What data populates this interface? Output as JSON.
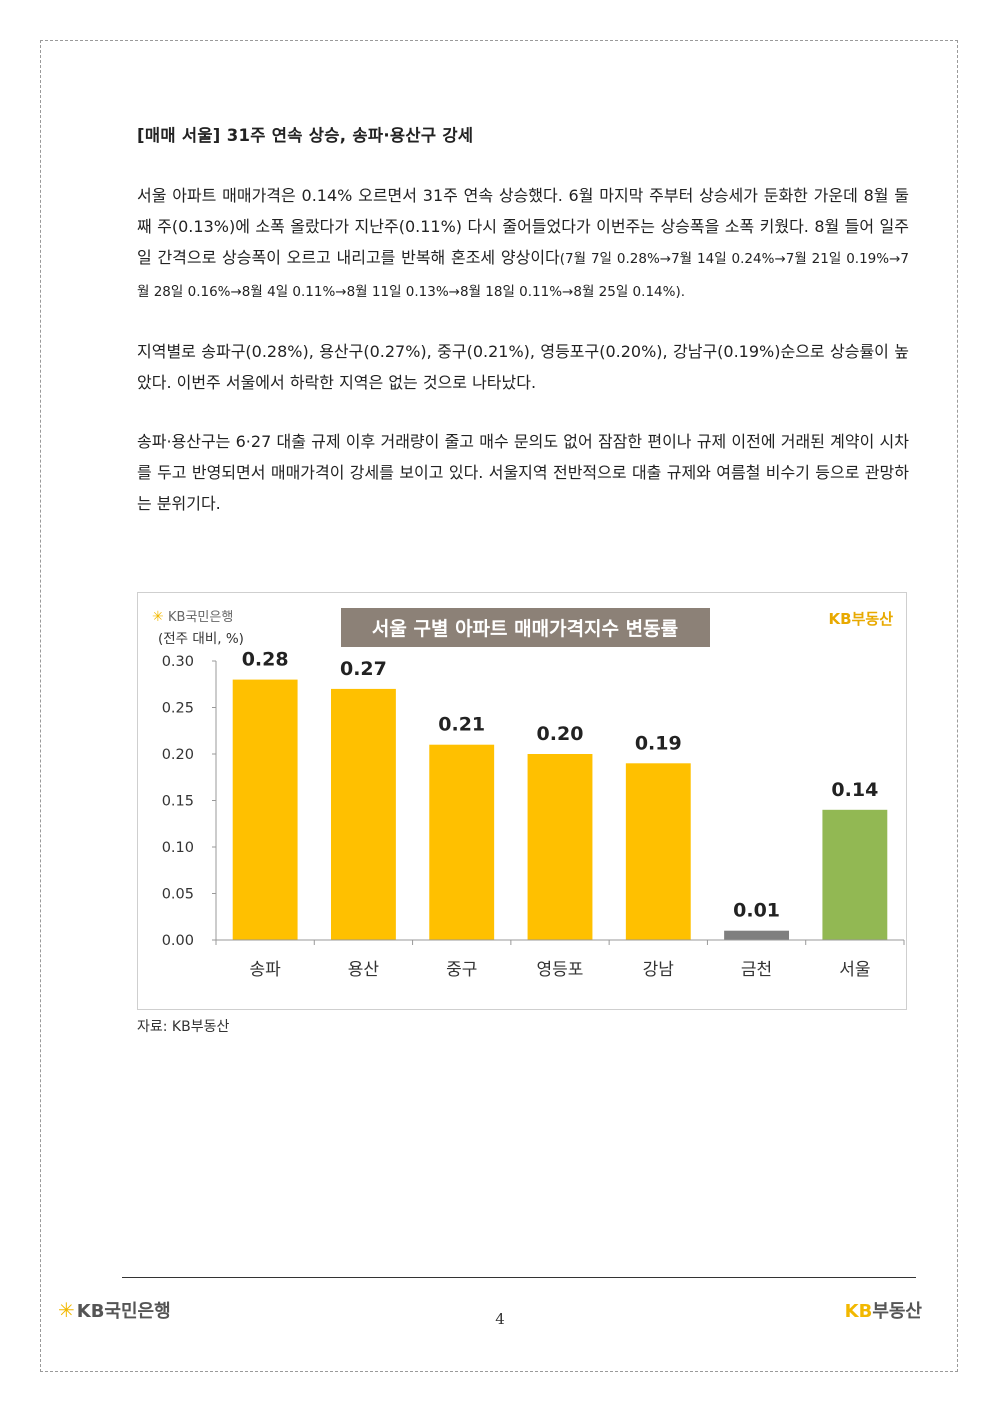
{
  "heading": "[매매 서울] 31주 연속 상승, 송파·용산구 강세",
  "paragraphs": {
    "p1_main": "서울 아파트 매매가격은 0.14% 오르면서 31주 연속 상승했다. 6월 마지막 주부터 상승세가 둔화한 가운데 8월 둘째 주(0.13%)에 소폭 올랐다가 지난주(0.11%) 다시 줄어들었다가 이번주는 상승폭을 소폭 키웠다. 8월 들어 일주일 간격으로 상승폭이 오르고 내리고를 반복해 혼조세 양상이다",
    "p1_detail": "(7월 7일 0.28%→7월 14일 0.24%→7월 21일 0.19%→7월 28일 0.16%→8월 4일 0.11%→8월 11일 0.13%→8월 18일 0.11%→8월 25일 0.14%).",
    "p2": "지역별로 송파구(0.28%), 용산구(0.27%), 중구(0.21%), 영등포구(0.20%), 강남구(0.19%)순으로 상승률이 높았다. 이번주 서울에서 하락한 지역은 없는 것으로 나타났다.",
    "p3": "송파·용산구는 6·27 대출 규제 이후 거래량이 줄고 매수 문의도 없어 잠잠한 편이나 규제 이전에 거래된 계약이 시차를 두고 반영되면서 매매가격이 강세를 보이고 있다. 서울지역 전반적으로 대출 규제와 여름철 비수기 등으로 관망하는 분위기다."
  },
  "chart_logo_left": "KB국민은행",
  "chart_logo_right": "KB부동산",
  "chart_data": {
    "type": "bar",
    "title": "서울 구별 아파트 매매가격지수 변동률",
    "ylabel": "(전주 대비, %)",
    "categories": [
      "송파",
      "용산",
      "중구",
      "영등포",
      "강남",
      "금천",
      "서울"
    ],
    "values": [
      0.28,
      0.27,
      0.21,
      0.2,
      0.19,
      0.01,
      0.14
    ],
    "value_labels": [
      "0.28",
      "0.27",
      "0.21",
      "0.20",
      "0.19",
      "0.01",
      "0.14"
    ],
    "yticks": [
      "0.00",
      "0.05",
      "0.10",
      "0.15",
      "0.20",
      "0.25",
      "0.30"
    ],
    "ylim": [
      0,
      0.3
    ],
    "colors": [
      "#FFC000",
      "#FFC000",
      "#FFC000",
      "#FFC000",
      "#FFC000",
      "#7F7F7F",
      "#92B853"
    ],
    "grid": false
  },
  "source": "자료: KB부동산",
  "footer": {
    "left_logo": "KB국민은행",
    "right_logo_kb": "KB",
    "right_logo_text": "부동산",
    "page_number": "4"
  }
}
